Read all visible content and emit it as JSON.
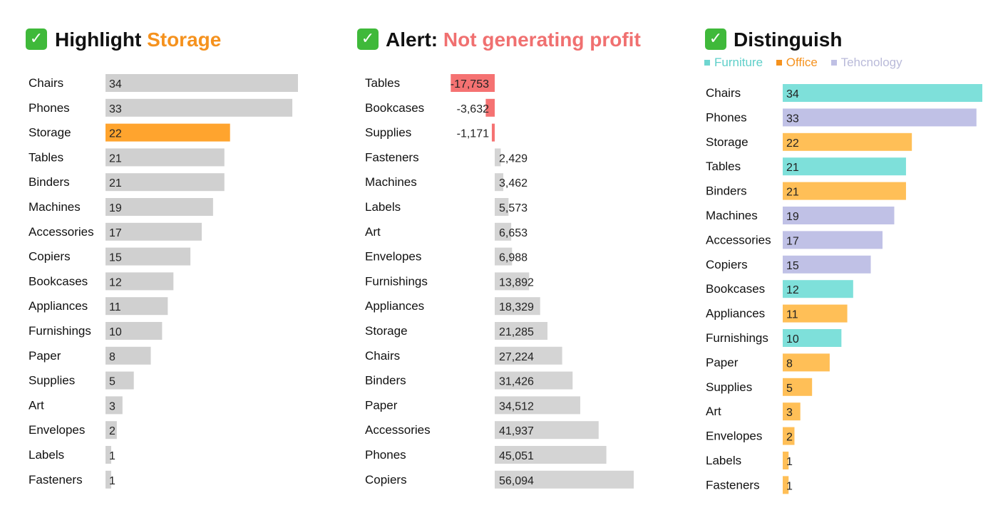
{
  "panels": [
    {
      "title_prefix": "Highlight",
      "title_highlight": "Storage",
      "highlight_color": "#f5921e"
    },
    {
      "title_prefix": "Alert:",
      "title_highlight": "Not generating profit",
      "highlight_color": "#f07070"
    },
    {
      "title_prefix": "Distinguish",
      "title_highlight": "",
      "legend": [
        {
          "label": "Furniture",
          "color": "#6fd6d0"
        },
        {
          "label": "Office",
          "color": "#f5921e"
        },
        {
          "label": "Tehcnology",
          "color": "#bfc0e4"
        }
      ]
    }
  ],
  "icons": {
    "check": "check-mark-icon"
  },
  "chart_data": [
    {
      "type": "bar",
      "orientation": "horizontal",
      "title": "Highlight Storage",
      "categories": [
        "Chairs",
        "Phones",
        "Storage",
        "Tables",
        "Binders",
        "Machines",
        "Accessories",
        "Copiers",
        "Bookcases",
        "Appliances",
        "Furnishings",
        "Paper",
        "Supplies",
        "Art",
        "Envelopes",
        "Labels",
        "Fasteners"
      ],
      "values": [
        34,
        33,
        22,
        21,
        21,
        19,
        17,
        15,
        12,
        11,
        10,
        8,
        5,
        3,
        2,
        1,
        1
      ],
      "labels": [
        "34",
        "33",
        "22",
        "21",
        "21",
        "19",
        "17",
        "15",
        "12",
        "11",
        "10",
        "8",
        "5",
        "3",
        "2",
        "1",
        "1"
      ],
      "default_color": "#d0d0d0",
      "highlight_category": "Storage",
      "highlight_color": "#ffa42e"
    },
    {
      "type": "bar",
      "orientation": "horizontal",
      "title": "Alert: Not generating profit",
      "categories": [
        "Tables",
        "Bookcases",
        "Supplies",
        "Fasteners",
        "Machines",
        "Labels",
        "Art",
        "Envelopes",
        "Furnishings",
        "Appliances",
        "Storage",
        "Chairs",
        "Binders",
        "Paper",
        "Accessories",
        "Phones",
        "Copiers"
      ],
      "values": [
        -17753,
        -3632,
        -1171,
        2429,
        3462,
        5573,
        6653,
        6988,
        13892,
        18329,
        21285,
        27224,
        31426,
        34512,
        41937,
        45051,
        56094
      ],
      "labels": [
        "-17,753",
        "-3,632",
        "-1,171",
        "2,429",
        "3,462",
        "5,573",
        "6,653",
        "6,988",
        "13,892",
        "18,329",
        "21,285",
        "27,224",
        "31,426",
        "34,512",
        "41,937",
        "45,051",
        "56,094"
      ],
      "positive_color": "#d4d4d4",
      "negative_color": "#f57272"
    },
    {
      "type": "bar",
      "orientation": "horizontal",
      "title": "Distinguish",
      "categories": [
        "Chairs",
        "Phones",
        "Storage",
        "Tables",
        "Binders",
        "Machines",
        "Accessories",
        "Copiers",
        "Bookcases",
        "Appliances",
        "Furnishings",
        "Paper",
        "Supplies",
        "Art",
        "Envelopes",
        "Labels",
        "Fasteners"
      ],
      "values": [
        34,
        33,
        22,
        21,
        21,
        19,
        17,
        15,
        12,
        11,
        10,
        8,
        5,
        3,
        2,
        1,
        1
      ],
      "labels": [
        "34",
        "33",
        "22",
        "21",
        "21",
        "19",
        "17",
        "15",
        "12",
        "11",
        "10",
        "8",
        "5",
        "3",
        "2",
        "1",
        "1"
      ],
      "groups": [
        "Furniture",
        "Tehcnology",
        "Office",
        "Furniture",
        "Office",
        "Tehcnology",
        "Tehcnology",
        "Tehcnology",
        "Furniture",
        "Office",
        "Furniture",
        "Office",
        "Office",
        "Office",
        "Office",
        "Office",
        "Office"
      ],
      "group_colors": {
        "Furniture": "#7ee0da",
        "Office": "#ffbf57",
        "Tehcnology": "#c0c1e6"
      }
    }
  ]
}
